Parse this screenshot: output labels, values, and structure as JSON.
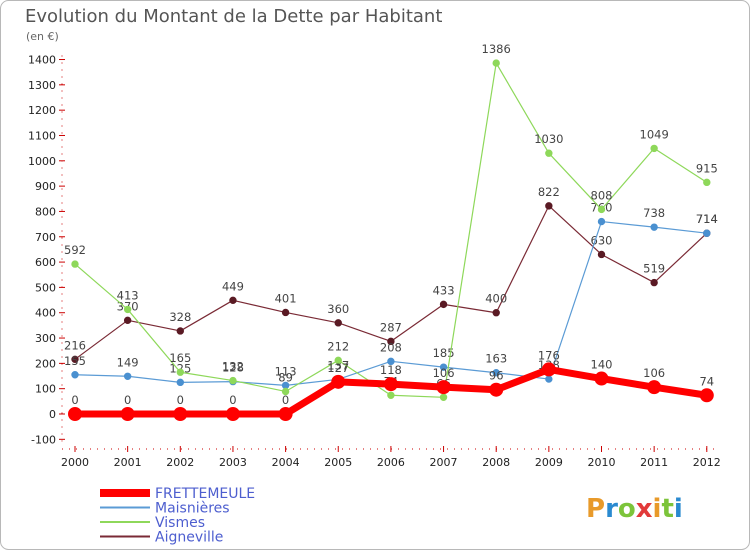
{
  "chart_data": {
    "type": "line",
    "title": "Evolution du Montant de la Dette par Habitant",
    "subtitle": "(en €)",
    "x": [
      "2000",
      "2001",
      "2002",
      "2003",
      "2004",
      "2005",
      "2006",
      "2007",
      "2008",
      "2009",
      "2010",
      "2011",
      "2012"
    ],
    "ylim": [
      -100,
      1400
    ],
    "yticks": [
      -100,
      0,
      100,
      200,
      300,
      400,
      500,
      600,
      700,
      800,
      900,
      1000,
      1100,
      1200,
      1300,
      1400
    ],
    "grid": false,
    "legend_position": "bottom-left",
    "series": [
      {
        "name": "Aigneville",
        "color": "#7a2a35",
        "values": [
          216,
          370,
          328,
          449,
          401,
          360,
          287,
          433,
          400,
          822,
          630,
          519,
          714
        ]
      },
      {
        "name": "Maisnières",
        "color": "#5b9bd5",
        "values": [
          155,
          149,
          125,
          128,
          113,
          137,
          208,
          185,
          163,
          138,
          760,
          738,
          714
        ]
      },
      {
        "name": "Vismes",
        "color": "#8ed85a",
        "values": [
          592,
          413,
          165,
          132,
          89,
          212,
          74,
          66,
          1386,
          1030,
          808,
          1049,
          915
        ]
      },
      {
        "name": "FRETTEMEULE",
        "color": "#ff0000",
        "values": [
          0,
          0,
          0,
          0,
          0,
          127,
          118,
          106,
          96,
          176,
          140,
          106,
          74
        ]
      }
    ]
  },
  "branding": {
    "logo_text": "Proxiti"
  }
}
